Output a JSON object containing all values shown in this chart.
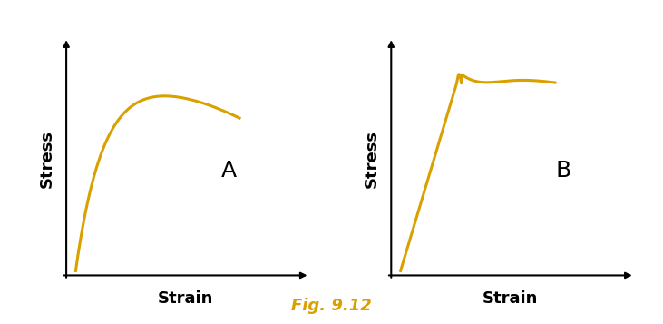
{
  "title": "Fig. 9.12",
  "title_color": "#DAA000",
  "title_fontsize": 13,
  "curve_color": "#DAA000",
  "curve_linewidth": 2.2,
  "label_A": "A",
  "label_B": "B",
  "xlabel": "Strain",
  "ylabel": "Stress",
  "background_color": "#ffffff",
  "axis_color": "#000000",
  "axis_label_fontsize": 13,
  "panel_label_fontsize": 18,
  "fig_caption_fontsize": 13
}
